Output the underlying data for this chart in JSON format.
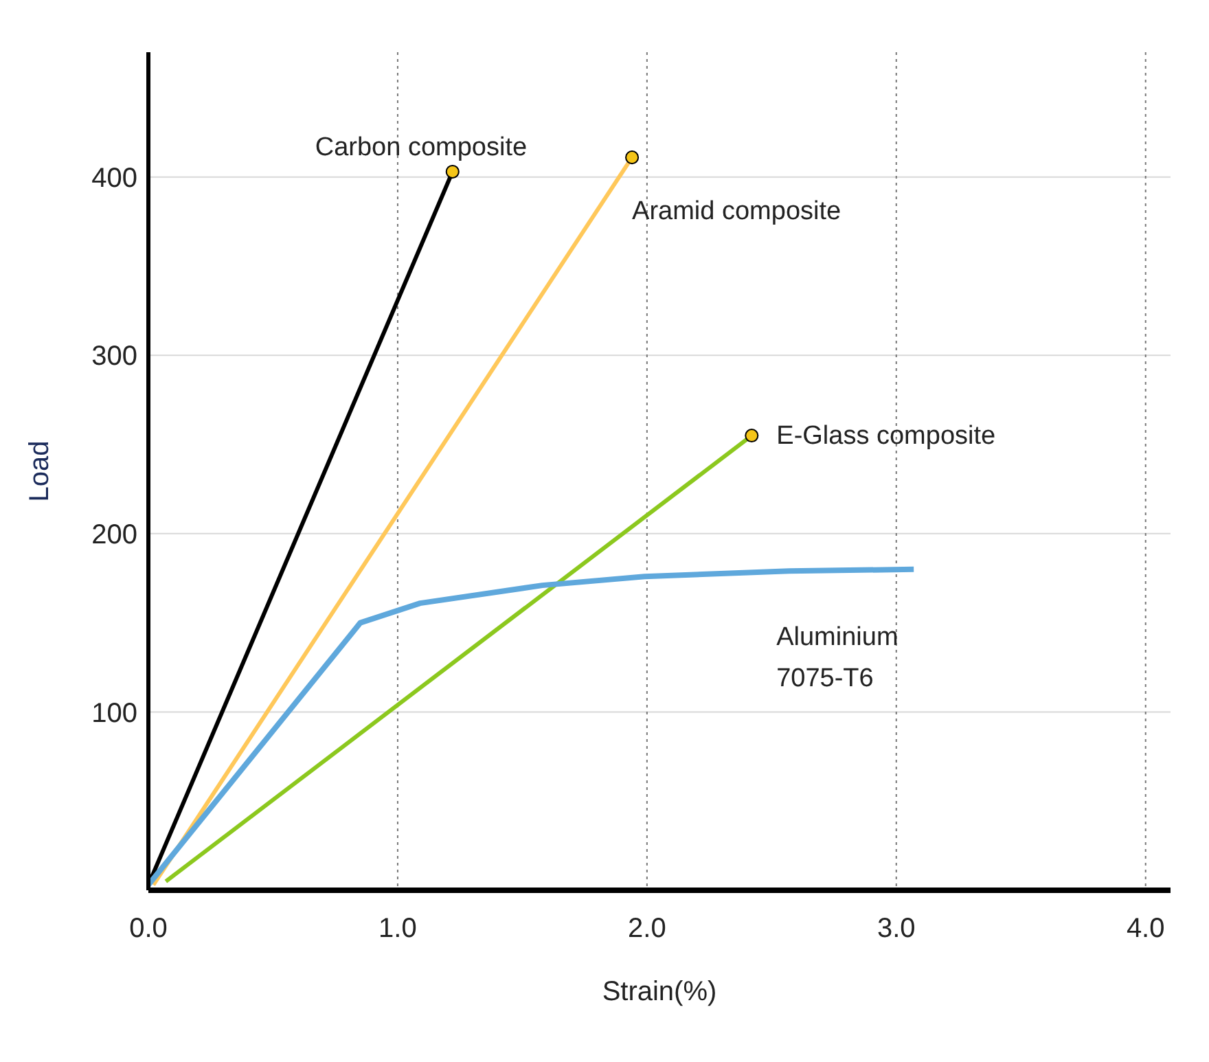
{
  "chart_data": {
    "type": "line",
    "xlabel": "Strain(%)",
    "ylabel": "Load",
    "xlim": [
      0,
      4.1
    ],
    "ylim": [
      0,
      470
    ],
    "xticks": [
      {
        "value": 0,
        "label": "0.0"
      },
      {
        "value": 1,
        "label": "1.0"
      },
      {
        "value": 2,
        "label": "2.0"
      },
      {
        "value": 3,
        "label": "3.0"
      },
      {
        "value": 4,
        "label": "4.0"
      }
    ],
    "yticks": [
      100,
      200,
      300,
      400
    ],
    "grid": true,
    "line_style": "solid",
    "series": [
      {
        "color": "#000000",
        "x": [
          0,
          1.22
        ],
        "values": [
          3,
          403
        ]
      },
      {
        "color": "#ffc85a",
        "x": [
          0.02,
          1.94
        ],
        "values": [
          3,
          411
        ]
      },
      {
        "color": "#8cc81e",
        "x": [
          0.07,
          2.42
        ],
        "values": [
          5,
          255
        ]
      },
      {
        "color": "#5fa8dc",
        "x": [
          0,
          0.85,
          1.09,
          1.58,
          1.99,
          2.57,
          3.07
        ],
        "values": [
          3,
          150,
          161,
          171,
          176,
          179,
          180
        ]
      },
      {
        "type": "scatter",
        "color": "#f5c518",
        "x": [
          1.22,
          1.94,
          2.42
        ],
        "values": [
          403,
          411,
          255
        ]
      }
    ],
    "annotations": [
      {
        "text": "Carbon composite",
        "x": 1.22,
        "y": 403
      },
      {
        "text": "Aramid composite",
        "x": 1.94,
        "y": 411
      },
      {
        "text": "E-Glass composite",
        "x": 2.42,
        "y": 255
      },
      {
        "text": "Aluminium\n7075-T6",
        "x": 3.07,
        "y": 180
      }
    ]
  }
}
